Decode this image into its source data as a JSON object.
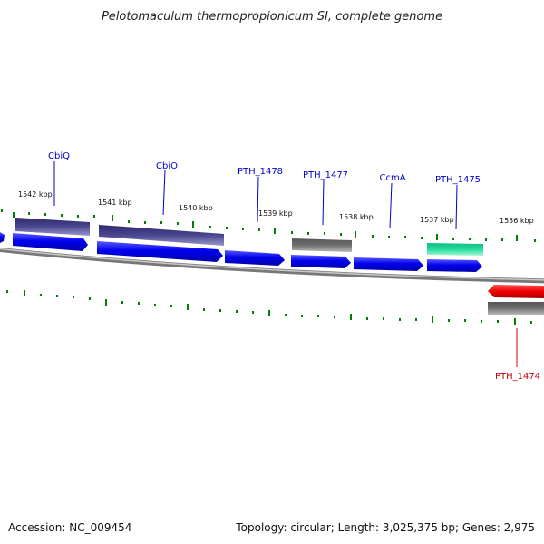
{
  "title": "Pelotomaculum thermopropionicum SI, complete genome",
  "footer": {
    "accession": "Accession: NC_009454",
    "summary": "Topology: circular; Length: 3,025,375 bp; Genes: 2,975"
  },
  "scale_labels": [
    "1542 kbp",
    "1541 kbp",
    "1540 kbp",
    "1539 kbp",
    "1538 kbp",
    "1537 kbp",
    "1536 kbp"
  ],
  "gene_labels": {
    "cbiq": "CbiQ",
    "cbio": "CbiO",
    "pth1478": "PTH_1478",
    "pth1477": "PTH_1477",
    "ccma": "CcmA",
    "pth1475": "PTH_1475",
    "pth1474": "PTH_1474"
  },
  "colors": {
    "forward_gene": "#0000ee",
    "reverse_gene": "#ee0000",
    "cds_purple": "#4a4690",
    "cds_gray": "#6b6b6b",
    "cds_teal": "#22dd99",
    "tick_green": "#008000",
    "backbone": "#8a8a8a"
  }
}
